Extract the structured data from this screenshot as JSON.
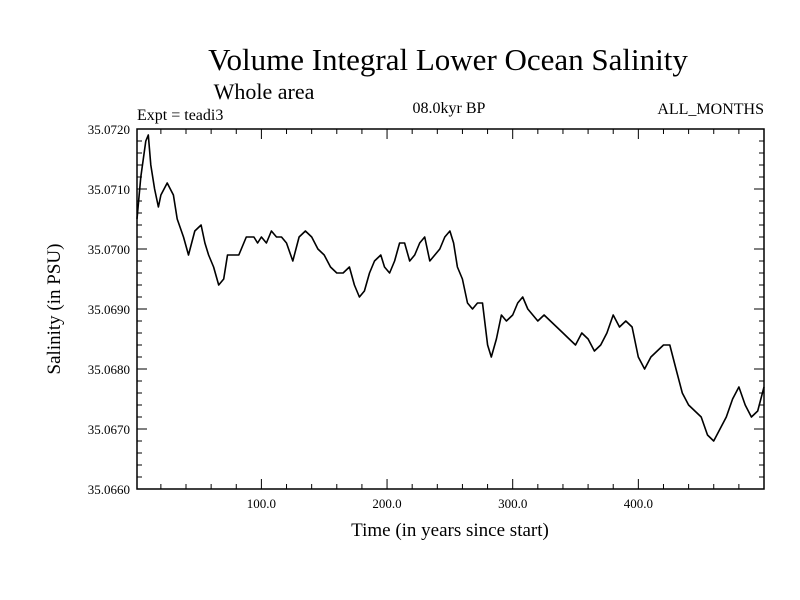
{
  "chart_data": {
    "type": "line",
    "title": "Volume Integral Lower Ocean Salinity",
    "subtitle": "Whole area",
    "experiment": "Expt = teadi3",
    "period": "08.0kyr BP",
    "months": "ALL_MONTHS",
    "xlabel": "Time (in years since start)",
    "ylabel": "Salinity (in PSU)",
    "xlim": [
      1,
      500
    ],
    "ylim": [
      35.066,
      35.072
    ],
    "xticks": [
      100,
      200,
      300,
      400
    ],
    "xtick_labels": [
      "100.0",
      "200.0",
      "300.0",
      "400.0"
    ],
    "yticks": [
      35.066,
      35.067,
      35.068,
      35.069,
      35.07,
      35.071,
      35.072
    ],
    "ytick_labels": [
      "35.0660",
      "35.0670",
      "35.0680",
      "35.0690",
      "35.0700",
      "35.0710",
      "35.0720"
    ],
    "series": [
      {
        "name": "Salinity",
        "color": "#000000",
        "x": [
          1,
          4,
          8,
          10,
          12,
          15,
          18,
          20,
          25,
          30,
          33,
          38,
          42,
          47,
          52,
          55,
          58,
          62,
          66,
          70,
          73,
          78,
          82,
          88,
          94,
          97,
          100,
          104,
          108,
          112,
          116,
          120,
          125,
          130,
          135,
          140,
          145,
          150,
          155,
          160,
          165,
          170,
          174,
          178,
          182,
          186,
          190,
          195,
          198,
          202,
          206,
          210,
          214,
          218,
          222,
          226,
          230,
          234,
          238,
          242,
          246,
          250,
          253,
          256,
          260,
          264,
          268,
          272,
          276,
          280,
          283,
          287,
          291,
          295,
          300,
          304,
          308,
          312,
          316,
          320,
          325,
          330,
          335,
          340,
          345,
          350,
          355,
          360,
          365,
          370,
          375,
          380,
          385,
          390,
          395,
          400,
          405,
          410,
          415,
          420,
          425,
          430,
          435,
          440,
          445,
          450,
          455,
          460,
          465,
          470,
          475,
          480,
          485,
          490,
          495,
          500
        ],
        "values": [
          35.0705,
          35.0712,
          35.0718,
          35.0719,
          35.0714,
          35.071,
          35.0707,
          35.0709,
          35.0711,
          35.0709,
          35.0705,
          35.0702,
          35.0699,
          35.0703,
          35.0704,
          35.0701,
          35.0699,
          35.0697,
          35.0694,
          35.0695,
          35.0699,
          35.0699,
          35.0699,
          35.0702,
          35.0702,
          35.0701,
          35.0702,
          35.0701,
          35.0703,
          35.0702,
          35.0702,
          35.0701,
          35.0698,
          35.0702,
          35.0703,
          35.0702,
          35.07,
          35.0699,
          35.0697,
          35.0696,
          35.0696,
          35.0697,
          35.0694,
          35.0692,
          35.0693,
          35.0696,
          35.0698,
          35.0699,
          35.0697,
          35.0696,
          35.0698,
          35.0701,
          35.0701,
          35.0698,
          35.0699,
          35.0701,
          35.0702,
          35.0698,
          35.0699,
          35.07,
          35.0702,
          35.0703,
          35.0701,
          35.0697,
          35.0695,
          35.0691,
          35.069,
          35.0691,
          35.0691,
          35.0684,
          35.0682,
          35.0685,
          35.0689,
          35.0688,
          35.0689,
          35.0691,
          35.0692,
          35.069,
          35.0689,
          35.0688,
          35.0689,
          35.0688,
          35.0687,
          35.0686,
          35.0685,
          35.0684,
          35.0686,
          35.0685,
          35.0683,
          35.0684,
          35.0686,
          35.0689,
          35.0687,
          35.0688,
          35.0687,
          35.0682,
          35.068,
          35.0682,
          35.0683,
          35.0684,
          35.0684,
          35.068,
          35.0676,
          35.0674,
          35.0673,
          35.0672,
          35.0669,
          35.0668,
          35.067,
          35.0672,
          35.0675,
          35.0677,
          35.0674,
          35.0672,
          35.0673,
          35.0677
        ]
      }
    ]
  }
}
